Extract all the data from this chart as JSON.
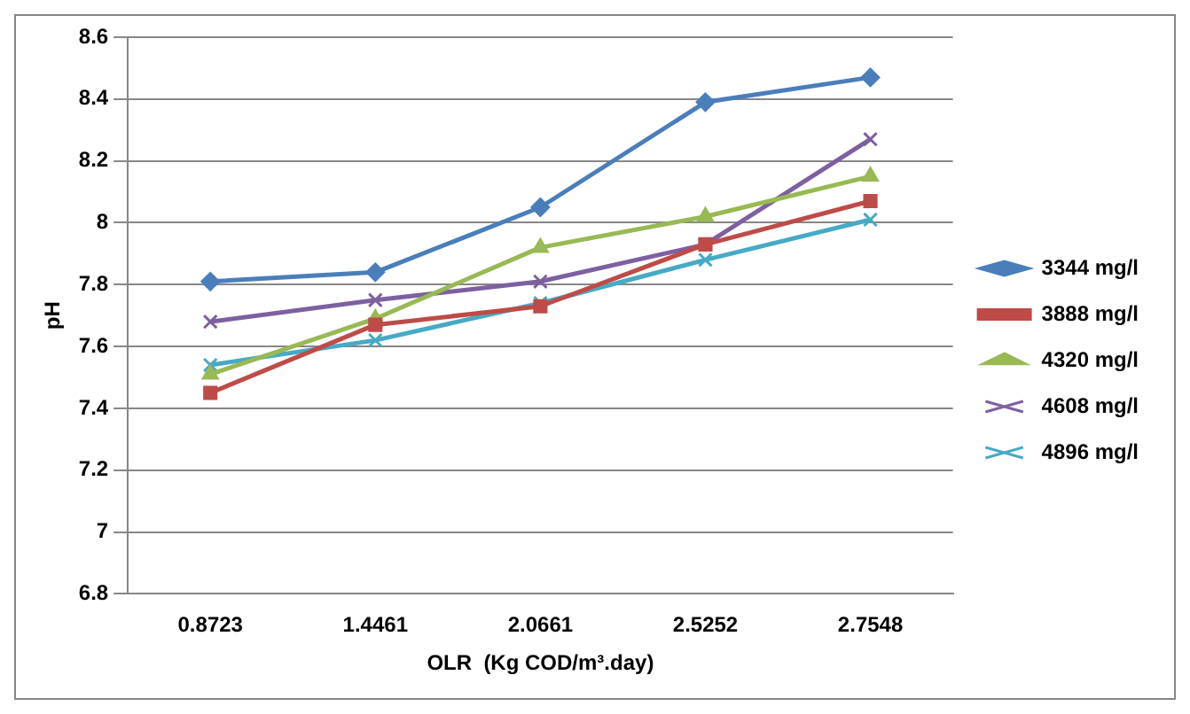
{
  "chart_data": {
    "type": "line",
    "xlabel": "OLR  (Kg COD/m³.day)",
    "ylabel": "pH",
    "categories": [
      "0.8723",
      "1.4461",
      "2.0661",
      "2.5252",
      "2.7548"
    ],
    "series": [
      {
        "name": "3344 mg/l",
        "color": "#4a7ebb",
        "marker": "diamond",
        "values": [
          7.81,
          7.84,
          8.05,
          8.39,
          8.47
        ]
      },
      {
        "name": "3888 mg/l",
        "color": "#be4b48",
        "marker": "square",
        "values": [
          7.45,
          7.67,
          7.73,
          7.93,
          8.07
        ]
      },
      {
        "name": "4320 mg/l",
        "color": "#98b954",
        "marker": "triangle",
        "values": [
          7.51,
          7.69,
          7.92,
          8.02,
          8.15
        ]
      },
      {
        "name": "4608 mg/l",
        "color": "#7d60a0",
        "marker": "cross",
        "values": [
          7.68,
          7.75,
          7.81,
          7.93,
          8.27
        ]
      },
      {
        "name": "4896 mg/l",
        "color": "#46aac5",
        "marker": "cross",
        "values": [
          7.54,
          7.62,
          7.74,
          7.88,
          8.01
        ]
      }
    ],
    "ylim": [
      6.8,
      8.6
    ],
    "yticks": [
      6.8,
      7,
      7.2,
      7.4,
      7.6,
      7.8,
      8,
      8.2,
      8.4,
      8.6
    ],
    "grid": "y",
    "legend": "right",
    "line_style": "solid"
  }
}
